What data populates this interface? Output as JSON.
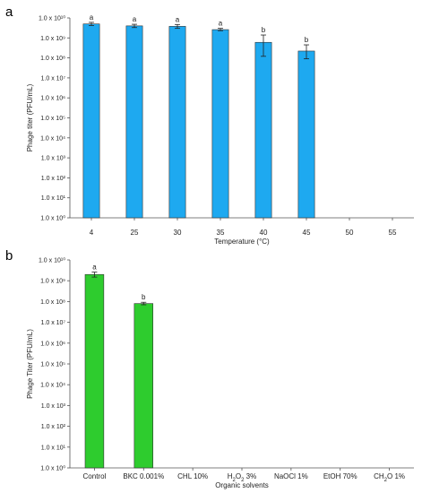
{
  "chart_data": [
    {
      "panel": "a",
      "type": "bar",
      "scale": "log",
      "ylim": [
        1,
        10000000000.0
      ],
      "ylabel": "Phage titer (PFU/mL)",
      "xlabel": "Temperature (°C)",
      "yticks": [
        "1.0 x 10⁰",
        "1.0 x 10¹",
        "1.0 x 10²",
        "1.0 x 10³",
        "1.0 x 10⁴",
        "1.0 x 10⁵",
        "1.0 x 10⁶",
        "1.0 x 10⁷",
        "1.0 x 10⁸",
        "1.0 x 10⁹",
        "1.0 x 10¹⁰"
      ],
      "categories": [
        "4",
        "25",
        "30",
        "35",
        "40",
        "45",
        "50",
        "55"
      ],
      "values": [
        5000000000.0,
        4000000000.0,
        3800000000.0,
        2600000000.0,
        600000000.0,
        220000000.0,
        null,
        null
      ],
      "error_upper": [
        6000000000.0,
        4800000000.0,
        4700000000.0,
        3000000000.0,
        1400000000.0,
        450000000.0,
        null,
        null
      ],
      "error_lower": [
        4200000000.0,
        3300000000.0,
        3000000000.0,
        2300000000.0,
        120000000.0,
        90000000.0,
        null,
        null
      ],
      "significance": [
        "a",
        "a",
        "a",
        "a",
        "b",
        "b",
        "",
        ""
      ],
      "bar_color": "#1ea9f0",
      "grid": false
    },
    {
      "panel": "b",
      "type": "bar",
      "scale": "log",
      "ylim": [
        1,
        10000000000.0
      ],
      "ylabel": "Phage Titer (PFU/mL)",
      "xlabel": "Organic solvents",
      "yticks": [
        "1.0 x 10⁰",
        "1.0 x 10¹",
        "1.0 x 10²",
        "1.0 x 10³",
        "1.0 x 10⁴",
        "1.0 x 10⁵",
        "1.0 x 10⁶",
        "1.0 x 10⁷",
        "1.0 x 10⁸",
        "1.0 x 10⁹",
        "1.0 x 10¹⁰"
      ],
      "categories": [
        "Control",
        "BKC 0.001%",
        "CHL 10%",
        "H₂O₂ 3%",
        "NaOCl 1%",
        "EtOH 70%",
        "CH₂O 1%"
      ],
      "values": [
        2000000000.0,
        80000000.0,
        null,
        null,
        null,
        null,
        null
      ],
      "error_upper": [
        2600000000.0,
        92000000.0,
        null,
        null,
        null,
        null,
        null
      ],
      "error_lower": [
        1500000000.0,
        70000000.0,
        null,
        null,
        null,
        null,
        null
      ],
      "significance": [
        "a",
        "b",
        "",
        "",
        "",
        "",
        ""
      ],
      "bar_color": "#2ecc2e",
      "grid": false
    }
  ]
}
